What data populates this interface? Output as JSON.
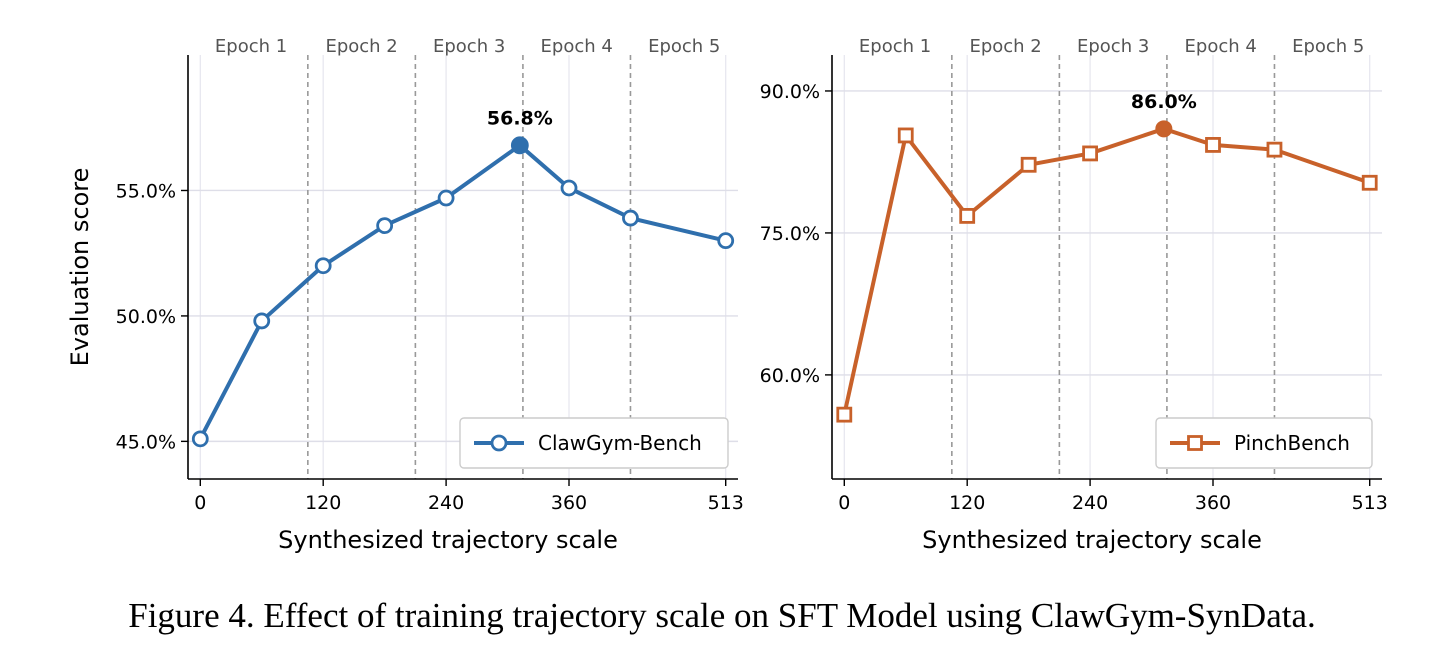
{
  "caption": "Figure 4. Effect of training trajectory scale on SFT Model using ClawGym-SynData.",
  "chart_data": [
    {
      "type": "line",
      "xlabel": "Synthesized trajectory scale",
      "ylabel": "Evaluation score",
      "x": [
        0,
        60,
        120,
        180,
        240,
        312,
        360,
        420,
        513
      ],
      "xticks": [
        0,
        120,
        240,
        360,
        513
      ],
      "xticklabels": [
        "0",
        "120",
        "240",
        "360",
        "513"
      ],
      "xlim": [
        -12,
        525
      ],
      "ylim": [
        43.5,
        60.4
      ],
      "yticks": [
        45,
        50,
        55
      ],
      "yticklabels": [
        "45.0%",
        "50.0%",
        "55.0%"
      ],
      "grid": true,
      "series": [
        {
          "name": "ClawGym-Bench",
          "values": [
            45.1,
            49.8,
            52.0,
            53.6,
            54.7,
            56.8,
            55.1,
            53.9,
            53.0
          ],
          "marker": "circle",
          "color": "#2f6fad"
        }
      ],
      "peak": {
        "index": 5,
        "label": "56.8%"
      },
      "epoch_boundaries": [
        105,
        210,
        315,
        420
      ],
      "epoch_labels": [
        "Epoch 1",
        "Epoch 2",
        "Epoch 3",
        "Epoch 4",
        "Epoch 5"
      ],
      "legend": "bottom-right"
    },
    {
      "type": "line",
      "xlabel": "Synthesized trajectory scale",
      "ylabel": "",
      "x": [
        0,
        60,
        120,
        180,
        240,
        312,
        360,
        420,
        513
      ],
      "xticks": [
        0,
        120,
        240,
        360,
        513
      ],
      "xticklabels": [
        "0",
        "120",
        "240",
        "360",
        "513"
      ],
      "xlim": [
        -12,
        525
      ],
      "ylim": [
        49.0,
        93.8
      ],
      "yticks": [
        60,
        75,
        90
      ],
      "yticklabels": [
        "60.0%",
        "75.0%",
        "90.0%"
      ],
      "grid": true,
      "series": [
        {
          "name": "PinchBench",
          "values": [
            55.8,
            85.3,
            76.8,
            82.2,
            83.4,
            86.0,
            84.3,
            83.8,
            80.3
          ],
          "marker": "square",
          "color": "#c8612a"
        }
      ],
      "peak": {
        "index": 5,
        "label": "86.0%"
      },
      "epoch_boundaries": [
        105,
        210,
        315,
        420
      ],
      "epoch_labels": [
        "Epoch 1",
        "Epoch 2",
        "Epoch 3",
        "Epoch 4",
        "Epoch 5"
      ],
      "legend": "bottom-right"
    }
  ]
}
